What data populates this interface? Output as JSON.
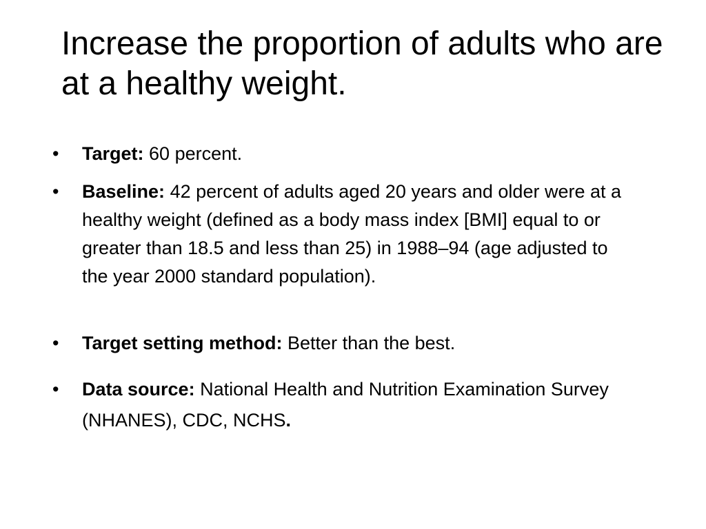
{
  "slide": {
    "title": "Increase the proportion of adults who are at a healthy weight.",
    "bullet_glyph": "•",
    "bullets": [
      {
        "label": "Target:",
        "text": "60 percent."
      },
      {
        "label": "Baseline:",
        "text": "42 percent of adults aged 20 years and older were at a healthy weight (defined as a body mass index [BMI] equal to or greater than 18.5 and less than 25) in 1988–94 (age adjusted to the year 2000 standard population)."
      },
      {
        "label": "Target setting method:",
        "text": "Better than the best."
      },
      {
        "label": "Data source:",
        "text": "National Health and Nutrition Examination Survey (NHANES), CDC, NCHS",
        "trailing": "."
      }
    ]
  }
}
